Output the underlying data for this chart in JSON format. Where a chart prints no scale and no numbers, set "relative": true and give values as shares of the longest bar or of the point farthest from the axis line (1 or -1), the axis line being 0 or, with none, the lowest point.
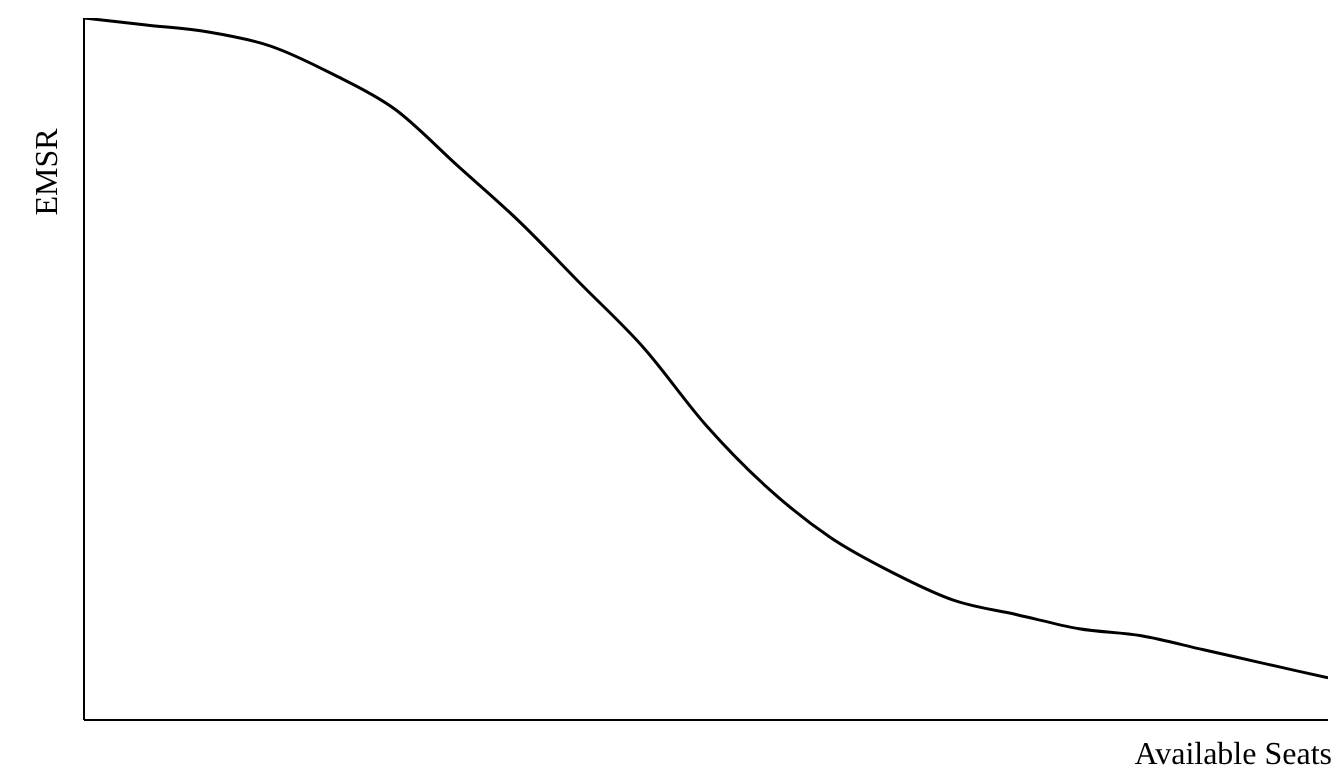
{
  "chart_data": {
    "type": "line",
    "xlabel": "Available Seats",
    "ylabel": "EMSR",
    "relative": true,
    "categories": [
      null,
      null,
      null,
      null,
      null,
      null,
      null,
      null,
      null,
      null,
      null,
      null,
      null,
      null,
      null,
      null,
      null,
      null,
      null,
      null,
      null
    ],
    "series": [
      {
        "color": "#000000",
        "values": [
          1,
          0.99,
          0.98,
          0.96,
          0.92,
          0.87,
          0.79,
          0.71,
          0.62,
          0.53,
          0.42,
          0.33,
          0.26,
          0.21,
          0.17,
          0.15,
          0.13,
          0.12,
          0.1,
          0.08,
          0.06
        ]
      }
    ],
    "grid": false,
    "legend": false,
    "marker": "none",
    "line_style": "solid"
  }
}
